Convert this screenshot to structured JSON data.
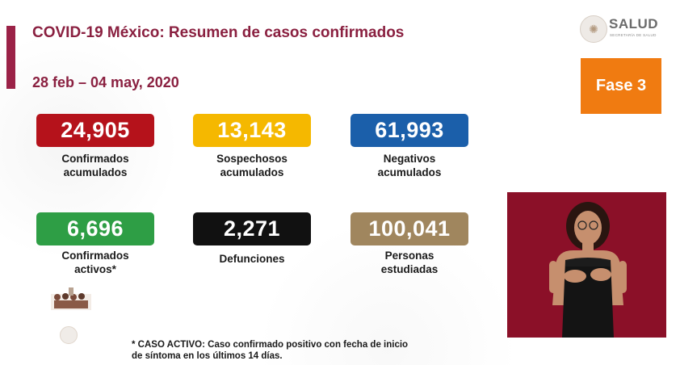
{
  "header": {
    "title": "COVID-19 México: Resumen de casos confirmados",
    "date_range": "28 feb – 04 may, 2020"
  },
  "logo": {
    "name": "SALUD",
    "subtitle": "SECRETARÍA DE SALUD",
    "icon": "coat-of-arms-icon"
  },
  "phase": {
    "label": "Fase 3",
    "color": "#f07b11"
  },
  "stats": [
    {
      "value": "24,905",
      "label_line1": "Confirmados",
      "label_line2": "acumulados",
      "color": "#b5121b"
    },
    {
      "value": "13,143",
      "label_line1": "Sospechosos",
      "label_line2": "acumulados",
      "color": "#f5b800"
    },
    {
      "value": "61,993",
      "label_line1": "Negativos",
      "label_line2": "acumulados",
      "color": "#1b5faa"
    },
    {
      "value": "6,696",
      "label_line1": "Confirmados",
      "label_line2": "activos*",
      "color": "#2e9e45"
    },
    {
      "value": "2,271",
      "label_line1": "Defunciones",
      "label_line2": "",
      "color": "#111111"
    },
    {
      "value": "100,041",
      "label_line1": "Personas",
      "label_line2": "estudiadas",
      "color": "#a0865e"
    }
  ],
  "footnote": {
    "line1": "* CASO ACTIVO: Caso confirmado positivo con fecha de inicio",
    "line2": "de síntoma en los últimos 14 días."
  },
  "colors": {
    "title": "#8a2040",
    "accent": "#9b2247",
    "interpreter_bg": "#8b1028"
  }
}
